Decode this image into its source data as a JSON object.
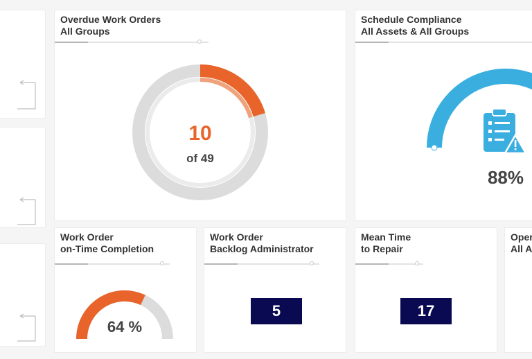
{
  "colors": {
    "accent_orange": "#e8642b",
    "accent_blue": "#3baee0",
    "track_gray": "#dcdcdc",
    "box_navy": "#0a0a52"
  },
  "icons": {
    "left_panel": "return-arrow-icon",
    "schedule": "clipboard-warning-icon"
  },
  "overdue": {
    "title_line1": "Overdue Work Orders",
    "title_line2": "All Groups",
    "value": "10",
    "of_text": "of 49",
    "count": 10,
    "total": 49
  },
  "schedule": {
    "title_line1": "Schedule Compliance",
    "title_line2": "All Assets & All Groups",
    "value_text": "88%",
    "percent": 88
  },
  "ontime": {
    "title_line1": "Work Order",
    "title_line2": "on-Time Completion",
    "value_text": "64 %",
    "percent": 64
  },
  "backlog": {
    "title_line1": "Work Order",
    "title_line2": "Backlog Administrator",
    "value": "5"
  },
  "mttr": {
    "title_line1": "Mean Time",
    "title_line2": "to Repair",
    "value": "17"
  },
  "partial": {
    "title_line1": "Oper",
    "title_line2": "All A"
  }
}
